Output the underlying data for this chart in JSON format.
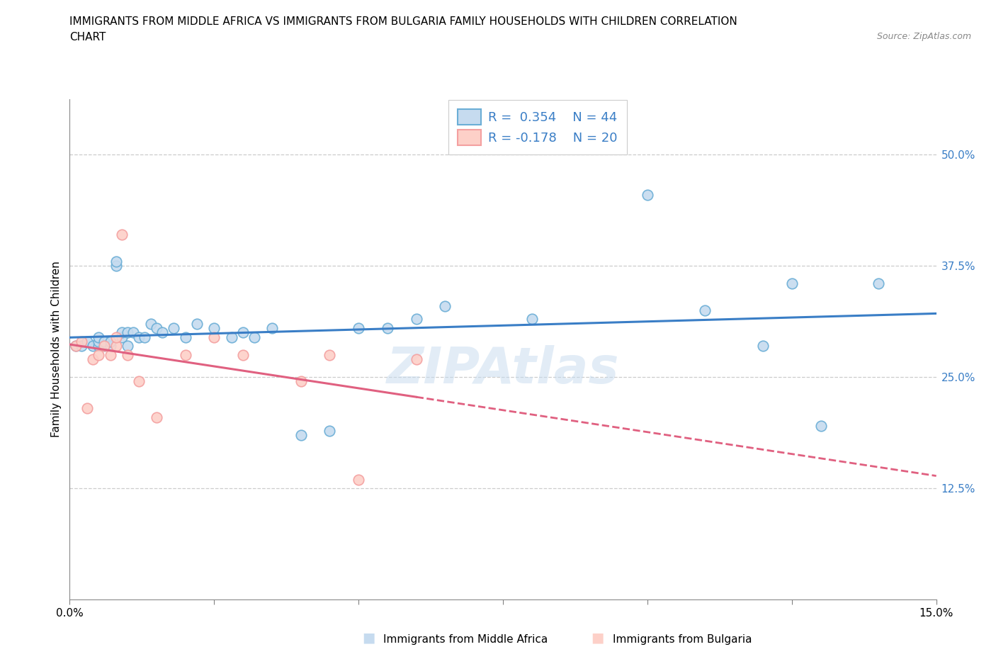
{
  "title_line1": "IMMIGRANTS FROM MIDDLE AFRICA VS IMMIGRANTS FROM BULGARIA FAMILY HOUSEHOLDS WITH CHILDREN CORRELATION",
  "title_line2": "CHART",
  "source_text": "Source: ZipAtlas.com",
  "ylabel": "Family Households with Children",
  "x_min": 0.0,
  "x_max": 0.15,
  "y_min": 0.0,
  "y_max": 0.5625,
  "y_ticks": [
    0.125,
    0.25,
    0.375,
    0.5
  ],
  "y_tick_labels": [
    "12.5%",
    "25.0%",
    "37.5%",
    "50.0%"
  ],
  "x_ticks": [
    0.0,
    0.025,
    0.05,
    0.075,
    0.1,
    0.125,
    0.15
  ],
  "x_tick_labels": [
    "0.0%",
    "",
    "",
    "",
    "",
    "",
    "15.0%"
  ],
  "blue_color": "#6baed6",
  "blue_fill": "#c6dbef",
  "pink_color": "#f4a0a0",
  "pink_fill": "#fdd0c8",
  "trend_blue": "#3a7ec6",
  "trend_pink": "#e06080",
  "label_color": "#3a7ec6",
  "watermark_color": "#c6dbef",
  "blue_x": [
    0.001,
    0.002,
    0.003,
    0.004,
    0.005,
    0.005,
    0.005,
    0.006,
    0.006,
    0.007,
    0.007,
    0.008,
    0.008,
    0.009,
    0.009,
    0.01,
    0.01,
    0.011,
    0.012,
    0.013,
    0.014,
    0.015,
    0.016,
    0.018,
    0.02,
    0.022,
    0.025,
    0.028,
    0.03,
    0.032,
    0.035,
    0.04,
    0.045,
    0.05,
    0.055,
    0.06,
    0.065,
    0.08,
    0.1,
    0.11,
    0.12,
    0.125,
    0.13,
    0.14
  ],
  "blue_y": [
    0.285,
    0.285,
    0.29,
    0.285,
    0.285,
    0.29,
    0.295,
    0.285,
    0.29,
    0.285,
    0.29,
    0.375,
    0.38,
    0.295,
    0.3,
    0.285,
    0.3,
    0.3,
    0.295,
    0.295,
    0.31,
    0.305,
    0.3,
    0.305,
    0.295,
    0.31,
    0.305,
    0.295,
    0.3,
    0.295,
    0.305,
    0.185,
    0.19,
    0.305,
    0.305,
    0.315,
    0.33,
    0.315,
    0.455,
    0.325,
    0.285,
    0.355,
    0.195,
    0.355
  ],
  "pink_x": [
    0.001,
    0.002,
    0.003,
    0.004,
    0.005,
    0.006,
    0.007,
    0.008,
    0.008,
    0.009,
    0.01,
    0.012,
    0.015,
    0.02,
    0.025,
    0.03,
    0.04,
    0.045,
    0.05,
    0.06
  ],
  "pink_y": [
    0.285,
    0.29,
    0.215,
    0.27,
    0.275,
    0.285,
    0.275,
    0.285,
    0.295,
    0.41,
    0.275,
    0.245,
    0.205,
    0.275,
    0.295,
    0.275,
    0.245,
    0.275,
    0.135,
    0.27
  ],
  "figsize": [
    14.06,
    9.3
  ],
  "dpi": 100
}
